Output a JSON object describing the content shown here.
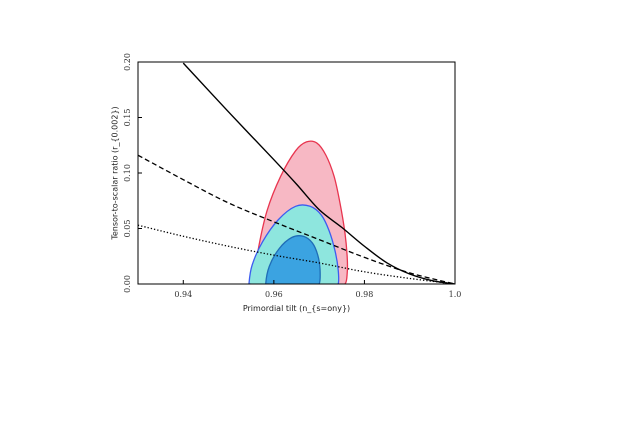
{
  "chart_data": {
    "type": "line",
    "xlabel": "Primordial tilt (n_{s=ony})",
    "ylabel": "Tensor-to-scalar ratio (r_{0.002})",
    "xlim": [
      0.93,
      1.0
    ],
    "ylim": [
      0.0,
      0.2
    ],
    "grid": false,
    "xticks": [
      "0.94",
      "0.96",
      "0.98",
      "1.0"
    ],
    "yticks": [
      "0.00",
      "0.05",
      "0.10",
      "0.15",
      "0.20"
    ],
    "series": [
      {
        "style": "solid",
        "color": "#000000",
        "x": [
          0.94,
          0.95,
          0.96,
          0.965,
          0.97,
          0.975,
          0.98,
          0.985,
          0.99,
          0.995,
          1.0
        ],
        "y": [
          0.199,
          0.155,
          0.112,
          0.09,
          0.067,
          0.051,
          0.034,
          0.019,
          0.009,
          0.003,
          0.0
        ]
      },
      {
        "style": "dashed",
        "color": "#000000",
        "x": [
          0.93,
          0.94,
          0.95,
          0.96,
          0.97,
          0.98,
          0.99,
          1.0
        ],
        "y": [
          0.116,
          0.094,
          0.073,
          0.056,
          0.04,
          0.024,
          0.01,
          0.0
        ]
      },
      {
        "style": "dotted",
        "color": "#000000",
        "x": [
          0.93,
          0.94,
          0.95,
          0.96,
          0.97,
          0.98,
          0.99,
          1.0
        ],
        "y": [
          0.053,
          0.043,
          0.034,
          0.026,
          0.019,
          0.011,
          0.005,
          0.0
        ]
      }
    ],
    "contours": [
      {
        "level": "outer",
        "fill": "#f7b8c4",
        "stroke": "#e8354f",
        "x": [
          0.9555,
          0.9565,
          0.9585,
          0.9615,
          0.9648,
          0.9672,
          0.9695,
          0.9715,
          0.9733,
          0.9746,
          0.9757,
          0.9762,
          0.9762,
          0.9757,
          0.9735,
          0.969,
          0.9625,
          0.957,
          0.9556
        ],
        "y": [
          0.0,
          0.03,
          0.066,
          0.097,
          0.12,
          0.128,
          0.127,
          0.116,
          0.097,
          0.073,
          0.046,
          0.024,
          0.01,
          0.0,
          -0.001,
          -0.002,
          -0.002,
          -0.001,
          0.0
        ]
      },
      {
        "level": "middle",
        "fill": "#8ee6de",
        "stroke": "#3d5cf0",
        "x": [
          0.9545,
          0.9552,
          0.9575,
          0.961,
          0.9648,
          0.968,
          0.9705,
          0.9722,
          0.9735,
          0.9742,
          0.9742,
          0.973,
          0.9695,
          0.9635,
          0.9578,
          0.9548
        ],
        "y": [
          0.0,
          0.017,
          0.038,
          0.058,
          0.07,
          0.07,
          0.062,
          0.048,
          0.03,
          0.013,
          0.0,
          -0.001,
          -0.002,
          -0.002,
          -0.001,
          0.0
        ]
      },
      {
        "level": "inner",
        "fill": "#3ba3e1",
        "stroke": "#1f6db7",
        "x": [
          0.9582,
          0.959,
          0.9612,
          0.964,
          0.9665,
          0.9685,
          0.9697,
          0.9702,
          0.97,
          0.9685,
          0.965,
          0.961,
          0.9587
        ],
        "y": [
          0.0,
          0.016,
          0.032,
          0.042,
          0.043,
          0.037,
          0.026,
          0.013,
          0.0,
          -0.001,
          -0.002,
          -0.001,
          0.0
        ]
      }
    ]
  }
}
